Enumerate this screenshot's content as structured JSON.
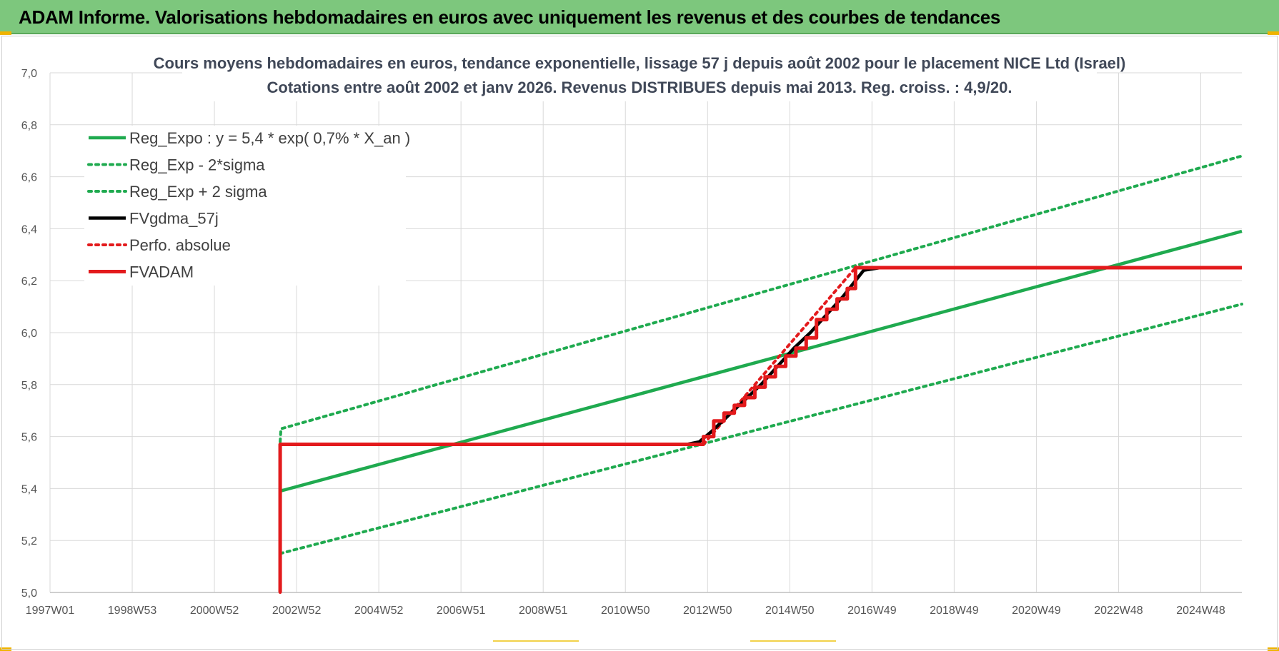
{
  "banner": {
    "title": "ADAM Informe. Valorisations hebdomadaires en euros avec uniquement les revenus et des courbes de tendances"
  },
  "colors": {
    "banner_bg": "#7dc77d",
    "trend": "#1faa4f",
    "band": "#1faa4f",
    "fvgdma": "#000000",
    "perfo": "#e31a1c",
    "fvadam": "#e31a1c",
    "grid": "#d9d9d9"
  },
  "chart_data": {
    "type": "line",
    "title_lines": [
      "Cours moyens hebdomadaires en euros, tendance exponentielle, lissage 57 j depuis août 2002 pour le placement NICE Ltd (Israel)",
      "Cotations entre août 2002 et janv 2026. Revenus DISTRIBUES depuis mai 2013. Reg. croiss. : 4,9/20."
    ],
    "ylim": [
      5.0,
      7.0
    ],
    "xlim": [
      1997.0,
      2026.0
    ],
    "grid": true,
    "legend_position": "top-left",
    "y_ticks": [
      {
        "value": 5.0,
        "label": "5,0"
      },
      {
        "value": 5.2,
        "label": "5,2"
      },
      {
        "value": 5.4,
        "label": "5,4"
      },
      {
        "value": 5.6,
        "label": "5,6"
      },
      {
        "value": 5.8,
        "label": "5,8"
      },
      {
        "value": 6.0,
        "label": "6,0"
      },
      {
        "value": 6.2,
        "label": "6,2"
      },
      {
        "value": 6.4,
        "label": "6,4"
      },
      {
        "value": 6.6,
        "label": "6,6"
      },
      {
        "value": 6.8,
        "label": "6,8"
      },
      {
        "value": 7.0,
        "label": "7,0"
      }
    ],
    "x_ticks": [
      {
        "value": 1997.0,
        "label": "1997W01"
      },
      {
        "value": 1999.0,
        "label": "1998W53"
      },
      {
        "value": 2001.0,
        "label": "2000W52"
      },
      {
        "value": 2003.0,
        "label": "2002W52"
      },
      {
        "value": 2005.0,
        "label": "2004W52"
      },
      {
        "value": 2007.0,
        "label": "2006W51"
      },
      {
        "value": 2009.0,
        "label": "2008W51"
      },
      {
        "value": 2011.0,
        "label": "2010W50"
      },
      {
        "value": 2013.0,
        "label": "2012W50"
      },
      {
        "value": 2015.0,
        "label": "2014W50"
      },
      {
        "value": 2017.0,
        "label": "2016W49"
      },
      {
        "value": 2019.0,
        "label": "2018W49"
      },
      {
        "value": 2021.0,
        "label": "2020W49"
      },
      {
        "value": 2023.0,
        "label": "2022W48"
      },
      {
        "value": 2025.0,
        "label": "2024W48"
      }
    ],
    "series": [
      {
        "name": "Reg_Expo : y = 5,4 * exp( 0,7% *  X_an )",
        "style": "solid",
        "color": "#1faa4f",
        "points": [
          [
            2002.6,
            5.39
          ],
          [
            2026.0,
            6.39
          ]
        ]
      },
      {
        "name": "Reg_Exp - 2*sigma",
        "style": "dotted",
        "color": "#1faa4f",
        "points": [
          [
            2002.6,
            5.15
          ],
          [
            2026.0,
            6.11
          ]
        ]
      },
      {
        "name": "Reg_Exp + 2 sigma",
        "style": "dotted",
        "color": "#1faa4f",
        "points": [
          [
            2002.6,
            5.58
          ],
          [
            2002.62,
            5.63
          ],
          [
            2026.0,
            6.68
          ]
        ]
      },
      {
        "name": "FVgdma_57j",
        "style": "solid",
        "color": "#000000",
        "points": [
          [
            2002.6,
            5.0
          ],
          [
            2002.6,
            5.57
          ],
          [
            2012.5,
            5.57
          ],
          [
            2012.8,
            5.58
          ],
          [
            2013.1,
            5.62
          ],
          [
            2013.5,
            5.68
          ],
          [
            2013.9,
            5.74
          ],
          [
            2014.3,
            5.8
          ],
          [
            2014.7,
            5.87
          ],
          [
            2015.1,
            5.94
          ],
          [
            2015.5,
            6.0
          ],
          [
            2015.9,
            6.07
          ],
          [
            2016.3,
            6.14
          ],
          [
            2016.6,
            6.2
          ],
          [
            2016.8,
            6.24
          ],
          [
            2017.2,
            6.25
          ],
          [
            2026.0,
            6.25
          ]
        ]
      },
      {
        "name": "Perfo. absolue",
        "style": "dotted",
        "color": "#e31a1c",
        "points": [
          [
            2002.6,
            5.0
          ],
          [
            2002.6,
            5.57
          ],
          [
            2012.9,
            5.57
          ],
          [
            2016.6,
            6.25
          ],
          [
            2026.0,
            6.25
          ]
        ]
      },
      {
        "name": "FVADAM",
        "style": "solid",
        "color": "#e31a1c",
        "points": [
          [
            2002.6,
            5.0
          ],
          [
            2002.6,
            5.57
          ],
          [
            2012.9,
            5.57
          ],
          [
            2012.9,
            5.6
          ],
          [
            2013.15,
            5.6
          ],
          [
            2013.15,
            5.66
          ],
          [
            2013.4,
            5.66
          ],
          [
            2013.4,
            5.69
          ],
          [
            2013.65,
            5.69
          ],
          [
            2013.65,
            5.72
          ],
          [
            2013.9,
            5.72
          ],
          [
            2013.9,
            5.75
          ],
          [
            2014.15,
            5.75
          ],
          [
            2014.15,
            5.79
          ],
          [
            2014.4,
            5.79
          ],
          [
            2014.4,
            5.83
          ],
          [
            2014.65,
            5.83
          ],
          [
            2014.65,
            5.87
          ],
          [
            2014.9,
            5.87
          ],
          [
            2014.9,
            5.91
          ],
          [
            2015.15,
            5.91
          ],
          [
            2015.15,
            5.94
          ],
          [
            2015.4,
            5.94
          ],
          [
            2015.4,
            5.98
          ],
          [
            2015.65,
            5.98
          ],
          [
            2015.65,
            6.05
          ],
          [
            2015.9,
            6.05
          ],
          [
            2015.9,
            6.09
          ],
          [
            2016.15,
            6.09
          ],
          [
            2016.15,
            6.13
          ],
          [
            2016.4,
            6.13
          ],
          [
            2016.4,
            6.17
          ],
          [
            2016.6,
            6.17
          ],
          [
            2016.6,
            6.25
          ],
          [
            2026.0,
            6.25
          ]
        ]
      }
    ]
  }
}
